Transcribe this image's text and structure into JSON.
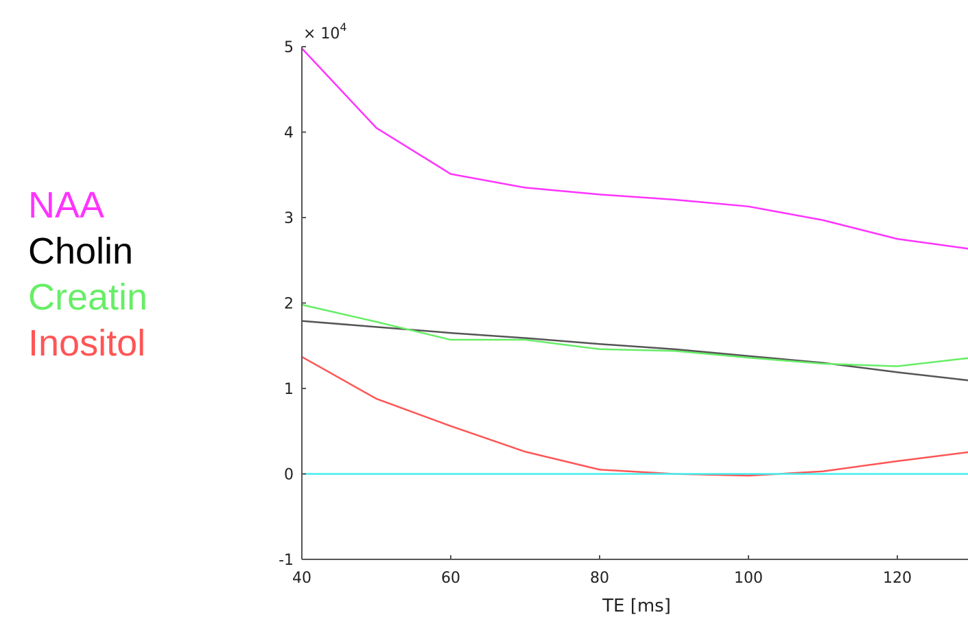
{
  "chart_data": {
    "type": "line",
    "xlabel": "TE [ms]",
    "ylabel": "",
    "y_multiplier": "× 10",
    "y_multiplier_exp": "4",
    "xlim": [
      40,
      130
    ],
    "ylim": [
      -1,
      5
    ],
    "x_ticks": [
      "40",
      "60",
      "80",
      "100",
      "120"
    ],
    "y_ticks": [
      "-1",
      "0",
      "1",
      "2",
      "3",
      "4",
      "5"
    ],
    "grid": false,
    "legend_position": "left",
    "series": [
      {
        "name": "NAA",
        "color": "#ff33ff",
        "x": [
          40,
          50,
          60,
          70,
          80,
          90,
          100,
          110,
          120,
          130
        ],
        "y": [
          4.98,
          4.05,
          3.51,
          3.35,
          3.27,
          3.21,
          3.13,
          2.97,
          2.75,
          2.63
        ]
      },
      {
        "name": "Cholin",
        "color": "#555555",
        "x": [
          40,
          50,
          60,
          70,
          80,
          90,
          100,
          110,
          120,
          130
        ],
        "y": [
          1.79,
          1.72,
          1.65,
          1.59,
          1.52,
          1.46,
          1.38,
          1.3,
          1.19,
          1.09
        ]
      },
      {
        "name": "Creatin",
        "color": "#66ee66",
        "x": [
          40,
          50,
          60,
          70,
          80,
          90,
          100,
          110,
          120,
          130
        ],
        "y": [
          1.98,
          1.78,
          1.57,
          1.57,
          1.46,
          1.44,
          1.36,
          1.29,
          1.26,
          1.36
        ]
      },
      {
        "name": "Inositol",
        "color": "#ff5555",
        "x": [
          40,
          50,
          60,
          70,
          80,
          90,
          100,
          110,
          120,
          130
        ],
        "y": [
          1.37,
          0.88,
          0.56,
          0.26,
          0.05,
          0.0,
          -0.02,
          0.03,
          0.15,
          0.26
        ]
      },
      {
        "name": "",
        "color": "#44eeee",
        "x": [
          40,
          130
        ],
        "y": [
          0,
          0
        ]
      }
    ]
  },
  "legend": {
    "items": [
      {
        "label": "NAA",
        "color": "#ff33ff"
      },
      {
        "label": "Cholin",
        "color": "#000000"
      },
      {
        "label": "Creatin",
        "color": "#66ee66"
      },
      {
        "label": "Inositol",
        "color": "#ff5555"
      }
    ]
  }
}
